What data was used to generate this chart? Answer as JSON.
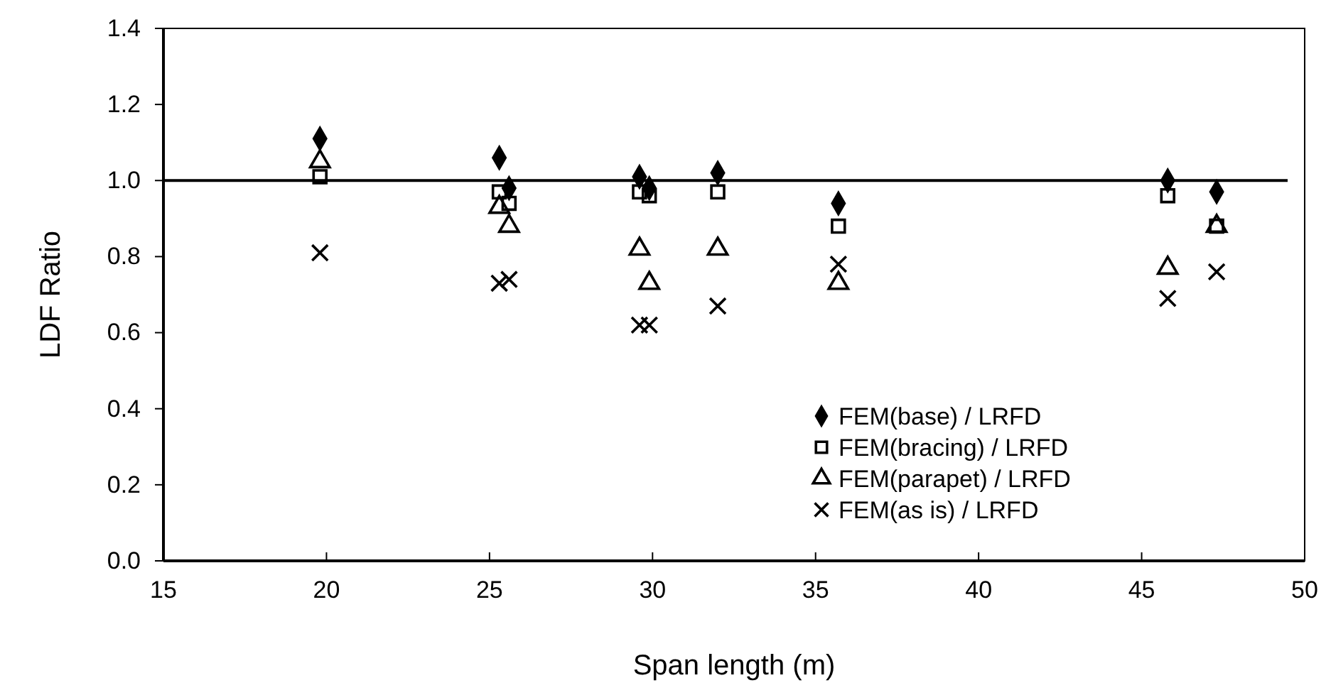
{
  "chart_data": {
    "type": "scatter",
    "xlabel": "Span length (m)",
    "ylabel": "LDF Ratio",
    "x": [
      19.8,
      25.3,
      25.6,
      29.6,
      29.9,
      32.0,
      35.7,
      45.8,
      47.3
    ],
    "series": [
      {
        "name": "FEM(base) / LRFD",
        "color": "#000000",
        "marker": "diamond",
        "values": [
          1.11,
          1.06,
          0.98,
          1.01,
          0.98,
          1.02,
          0.94,
          1.0,
          0.97
        ]
      },
      {
        "name": "FEM(bracing) / LRFD",
        "color": "#000000",
        "marker": "square",
        "values": [
          1.01,
          0.97,
          0.94,
          0.97,
          0.96,
          0.97,
          0.88,
          0.96,
          0.88
        ]
      },
      {
        "name": "FEM(parapet) / LRFD",
        "color": "#000000",
        "marker": "triangle",
        "values": [
          1.05,
          0.93,
          0.88,
          0.82,
          0.73,
          0.82,
          0.73,
          0.77,
          0.88
        ]
      },
      {
        "name": "FEM(as is) / LRFD",
        "color": "#000000",
        "marker": "cross",
        "values": [
          0.81,
          0.73,
          0.74,
          0.62,
          0.62,
          0.67,
          0.78,
          0.69,
          0.76
        ]
      }
    ],
    "xlim": [
      15,
      50
    ],
    "xticks": [
      15,
      20,
      25,
      30,
      35,
      40,
      45,
      50
    ],
    "ylim": [
      0,
      1.4
    ],
    "yticks": [
      {
        "value": 0,
        "label": "0.0"
      },
      0.2,
      0.4,
      0.6,
      0.8,
      {
        "value": 1,
        "label": "1.0"
      },
      1.2,
      1.4
    ],
    "ref_lines": [
      {
        "axis": "y",
        "value": 1.0,
        "color": "#000000"
      }
    ],
    "grid": false,
    "legend": "bottom right"
  }
}
